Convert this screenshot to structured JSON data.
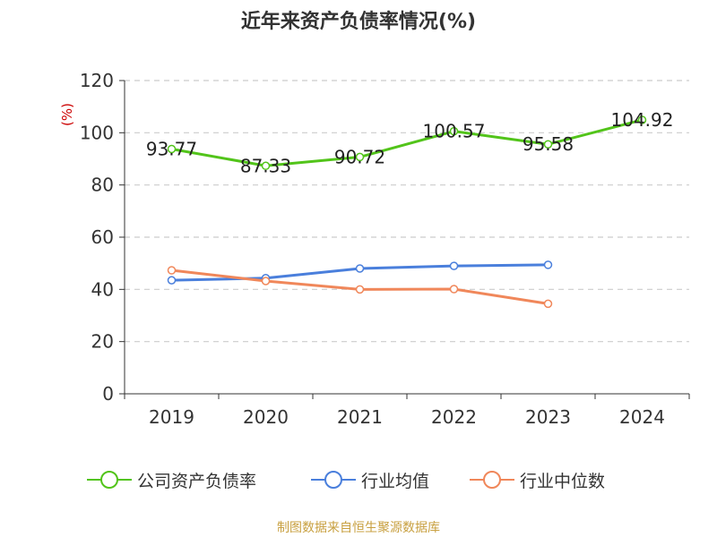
{
  "chart_data": {
    "type": "line",
    "title": "近年来资产负债率情况(%)",
    "ylabel": "(%)",
    "categories": [
      "2019",
      "2020",
      "2021",
      "2022",
      "2023",
      "2024"
    ],
    "ylim": [
      0,
      120
    ],
    "yticks": [
      0,
      20,
      40,
      60,
      80,
      100,
      120
    ],
    "grid": true,
    "legend_position": "bottom",
    "series": [
      {
        "name": "公司资产负债率",
        "color": "#52c41a",
        "values": [
          93.77,
          87.33,
          90.72,
          100.57,
          95.58,
          104.92
        ],
        "labels": [
          "93.77",
          "87.33",
          "90.72",
          "100.57",
          "95.58",
          "104.92"
        ]
      },
      {
        "name": "行业均值",
        "color": "#4a7fdc",
        "values": [
          43.5,
          44.3,
          48.0,
          49.0,
          49.4,
          null
        ]
      },
      {
        "name": "行业中位数",
        "color": "#f0875a",
        "values": [
          47.3,
          43.2,
          40.0,
          40.1,
          34.5,
          null
        ]
      }
    ]
  },
  "source_text": "制图数据来自恒生聚源数据库"
}
